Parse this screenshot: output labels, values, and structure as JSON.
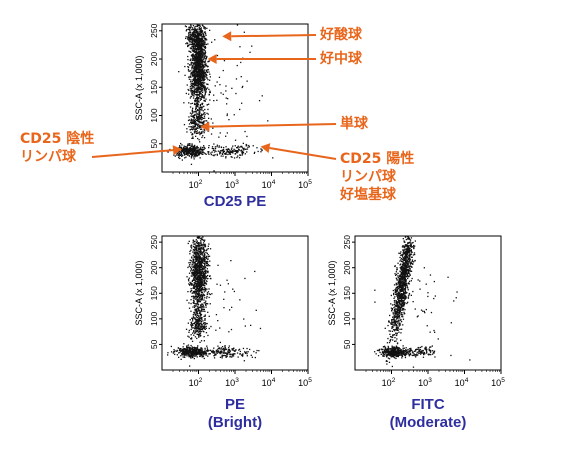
{
  "colors": {
    "annotation": "#e8661c",
    "caption": "#2e2e9e",
    "dots": "#111111",
    "axis": "#000000"
  },
  "chart_data": [
    {
      "id": "top",
      "type": "scatter",
      "x_scale": "log",
      "xlim": [
        10,
        100000
      ],
      "ylim": [
        0,
        262
      ],
      "ylabel": "SSC-A (x 1,000)",
      "x_ticks": [
        "10^2",
        "10^3",
        "10^4",
        "10^5"
      ],
      "x_tick_values": [
        100,
        1000,
        10000,
        100000
      ],
      "y_ticks": [
        "50",
        "100",
        "150",
        "200",
        "250"
      ],
      "y_tick_values": [
        50,
        100,
        150,
        200,
        250
      ],
      "caption": [
        "CD25 PE"
      ],
      "clusters": [
        {
          "name": "eosinophils",
          "n": 260,
          "x_log": [
            1.9,
            0.13
          ],
          "y": [
            240,
            12
          ]
        },
        {
          "name": "neutrophils",
          "n": 1300,
          "x_log": [
            1.98,
            0.11
          ],
          "y": [
            185,
            38
          ]
        },
        {
          "name": "monocytes",
          "n": 220,
          "x_log": [
            1.95,
            0.12
          ],
          "y": [
            90,
            15
          ]
        },
        {
          "name": "cd25-neg-lymph",
          "n": 380,
          "x_log": [
            1.75,
            0.22
          ],
          "y": [
            38,
            5
          ]
        },
        {
          "name": "cd25-pos-lymph",
          "n": 160,
          "x_log": [
            2.9,
            0.35
          ],
          "y": [
            38,
            5
          ]
        },
        {
          "name": "scatter",
          "n": 80,
          "x_log": [
            2.6,
            0.5
          ],
          "y": [
            120,
            70
          ]
        }
      ],
      "annotations": [
        {
          "lines": [
            "好酸球"
          ],
          "target": [
            2.65,
            240
          ]
        },
        {
          "lines": [
            "好中球"
          ],
          "target": [
            2.25,
            200
          ]
        },
        {
          "lines": [
            "単球"
          ],
          "target": [
            2.05,
            80
          ]
        },
        {
          "lines": [
            "CD25 陽性",
            "リンパ球",
            "好塩基球"
          ],
          "target": [
            3.7,
            45
          ]
        },
        {
          "lines": [
            "CD25 陰性",
            "リンパ球"
          ],
          "target": [
            1.55,
            40
          ]
        }
      ]
    },
    {
      "id": "bottom-left",
      "type": "scatter",
      "x_scale": "log",
      "xlim": [
        10,
        100000
      ],
      "ylim": [
        0,
        262
      ],
      "ylabel": "SSC-A (x 1,000)",
      "x_ticks": [
        "10^2",
        "10^3",
        "10^4",
        "10^5"
      ],
      "x_tick_values": [
        100,
        1000,
        10000,
        100000
      ],
      "y_ticks": [
        "50",
        "100",
        "150",
        "200",
        "250"
      ],
      "y_tick_values": [
        50,
        100,
        150,
        200,
        250
      ],
      "caption": [
        "PE",
        "(Bright)"
      ],
      "clusters": [
        {
          "name": "neutrophils",
          "n": 1100,
          "x_log": [
            2.0,
            0.12
          ],
          "y": [
            190,
            40
          ]
        },
        {
          "name": "monocytes",
          "n": 200,
          "x_log": [
            1.98,
            0.12
          ],
          "y": [
            90,
            15
          ]
        },
        {
          "name": "lymph-neg",
          "n": 360,
          "x_log": [
            1.8,
            0.22
          ],
          "y": [
            36,
            5
          ]
        },
        {
          "name": "lymph-pos",
          "n": 150,
          "x_log": [
            2.8,
            0.35
          ],
          "y": [
            36,
            5
          ]
        },
        {
          "name": "scatter",
          "n": 60,
          "x_log": [
            2.6,
            0.5
          ],
          "y": [
            120,
            70
          ]
        }
      ]
    },
    {
      "id": "bottom-right",
      "type": "scatter",
      "x_scale": "log",
      "xlim": [
        10,
        100000
      ],
      "ylim": [
        0,
        262
      ],
      "ylabel": "SSC-A (x 1,000)",
      "x_ticks": [
        "10^2",
        "10^3",
        "10^4",
        "10^5"
      ],
      "x_tick_values": [
        100,
        1000,
        10000,
        100000
      ],
      "y_ticks": [
        "50",
        "100",
        "150",
        "200",
        "250"
      ],
      "y_tick_values": [
        50,
        100,
        150,
        200,
        250
      ],
      "caption": [
        "FITC",
        "(Moderate)"
      ],
      "clusters": [
        {
          "name": "granulocytes",
          "n": 1100,
          "x_log": [
            2.28,
            0.09
          ],
          "y": [
            170,
            55
          ],
          "slope": 0.0022
        },
        {
          "name": "lymph-neg",
          "n": 320,
          "x_log": [
            2.05,
            0.18
          ],
          "y": [
            36,
            5
          ]
        },
        {
          "name": "lymph-pos",
          "n": 130,
          "x_log": [
            2.7,
            0.3
          ],
          "y": [
            36,
            5
          ]
        },
        {
          "name": "scatter",
          "n": 50,
          "x_log": [
            2.7,
            0.5
          ],
          "y": [
            110,
            60
          ]
        }
      ]
    }
  ]
}
